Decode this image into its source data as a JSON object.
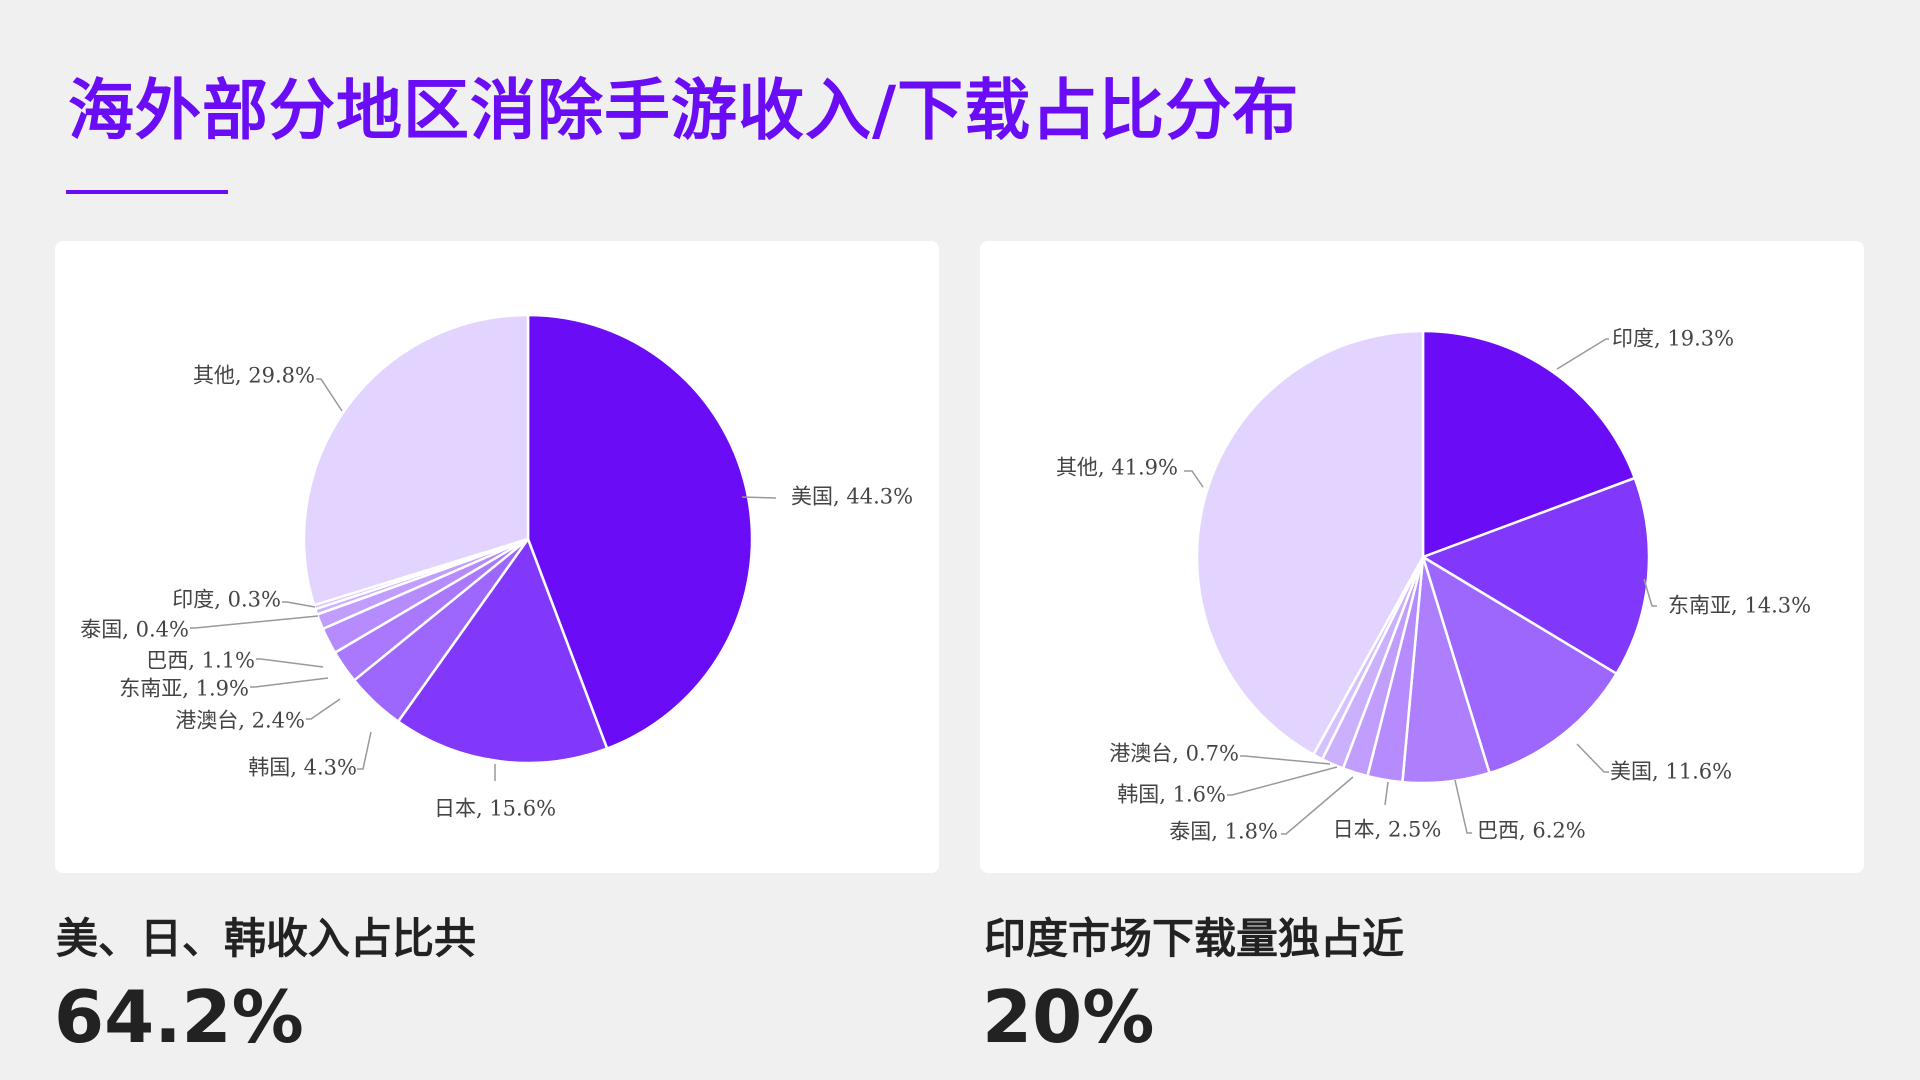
{
  "page": {
    "title": "海外部分地区消除手游收入/下载占比分布"
  },
  "colors": {
    "accent": "#6a0cf5",
    "card_bg": "#ffffff",
    "page_bg": "#f0f0f0",
    "leader_line": "#999999"
  },
  "chart_data": [
    {
      "type": "pie",
      "title": "",
      "slices": [
        {
          "label": "美国",
          "value": 44.3,
          "display": "美国, 44.3%",
          "color": "#6a0cf5"
        },
        {
          "label": "日本",
          "value": 15.6,
          "display": "日本, 15.6%",
          "color": "#8238fb"
        },
        {
          "label": "韩国",
          "value": 4.3,
          "display": "韩国, 4.3%",
          "color": "#9d66fc"
        },
        {
          "label": "港澳台",
          "value": 2.4,
          "display": "港澳台, 2.4%",
          "color": "#a978fc"
        },
        {
          "label": "东南亚",
          "value": 1.9,
          "display": "东南亚, 1.9%",
          "color": "#b58bfd"
        },
        {
          "label": "巴西",
          "value": 1.1,
          "display": "巴西, 1.1%",
          "color": "#c19efd"
        },
        {
          "label": "泰国",
          "value": 0.4,
          "display": "泰国, 0.4%",
          "color": "#cbb0fd"
        },
        {
          "label": "印度",
          "value": 0.3,
          "display": "印度, 0.3%",
          "color": "#d5c1fe"
        },
        {
          "label": "其他",
          "value": 29.8,
          "display": "其他, 29.8%",
          "color": "#e2d4fe"
        }
      ]
    },
    {
      "type": "pie",
      "title": "",
      "slices": [
        {
          "label": "印度",
          "value": 19.3,
          "display": "印度, 19.3%",
          "color": "#6a0cf5"
        },
        {
          "label": "东南亚",
          "value": 14.3,
          "display": "东南亚, 14.3%",
          "color": "#8238fb"
        },
        {
          "label": "美国",
          "value": 11.6,
          "display": "美国, 11.6%",
          "color": "#9d66fc"
        },
        {
          "label": "巴西",
          "value": 6.2,
          "display": "巴西, 6.2%",
          "color": "#ad7ffc"
        },
        {
          "label": "日本",
          "value": 2.5,
          "display": "日本, 2.5%",
          "color": "#b58bfd"
        },
        {
          "label": "泰国",
          "value": 1.8,
          "display": "泰国, 1.8%",
          "color": "#c19efd"
        },
        {
          "label": "韩国",
          "value": 1.6,
          "display": "韩国, 1.6%",
          "color": "#cbb0fd"
        },
        {
          "label": "港澳台",
          "value": 0.7,
          "display": "港澳台, 0.7%",
          "color": "#d5c1fe"
        },
        {
          "label": "其他",
          "value": 41.9,
          "display": "其他, 41.9%",
          "color": "#e2d4fe"
        }
      ]
    }
  ],
  "summary": {
    "left_caption": "美、日、韩收入占比共",
    "left_value": "64.2%",
    "right_caption": "印度市场下载量独占近",
    "right_value": "20%"
  }
}
